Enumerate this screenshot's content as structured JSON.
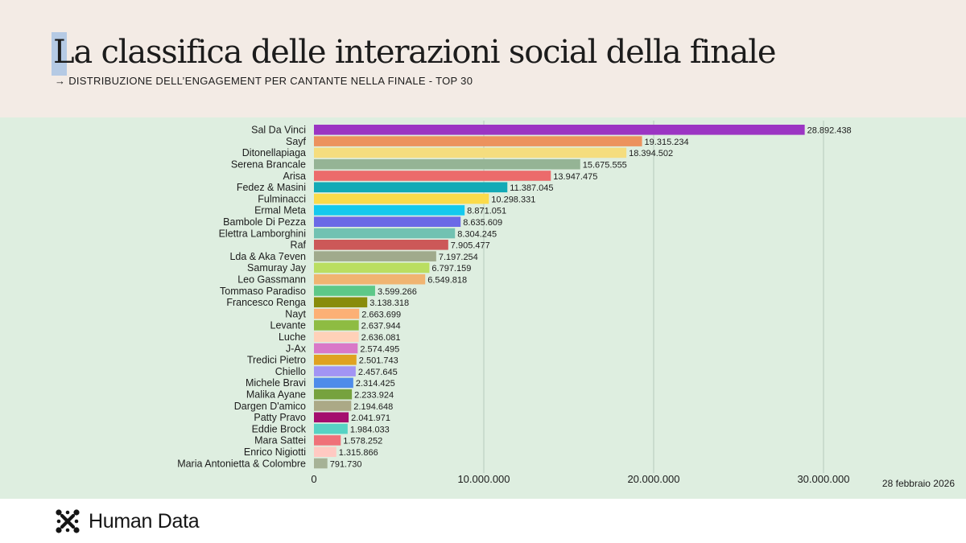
{
  "header": {
    "title": "La classifica delle interazioni social della finale",
    "subtitle": "→ DISTRIBUZIONE DELL’ENGAGEMENT PER CANTANTE NELLA FINALE - TOP 30"
  },
  "date_note": "28 febbraio 2026",
  "brand": {
    "name": "Human Data",
    "logo_icon": "human-data-logo-icon"
  },
  "colors": {
    "header_bg": "#f3ebe5",
    "chart_bg": "#deeee0",
    "grid": "#b7c9bb"
  },
  "chart_data": {
    "type": "bar",
    "orientation": "horizontal",
    "title": "La classifica delle interazioni social della finale",
    "subtitle": "→ DISTRIBUZIONE DELL’ENGAGEMENT PER CANTANTE NELLA FINALE - TOP 30",
    "xlabel": "",
    "ylabel": "",
    "xlim": [
      0,
      30000000
    ],
    "x_ticks": [
      0,
      10000000,
      20000000,
      30000000
    ],
    "x_tick_labels": [
      "0",
      "10.000.000",
      "20.000.000",
      "30.000.000"
    ],
    "grid": true,
    "categories": [
      "Sal Da Vinci",
      "Sayf",
      "Ditonellapiaga",
      "Serena Brancale",
      "Arisa",
      "Fedez & Masini",
      "Fulminacci",
      "Ermal Meta",
      "Bambole Di Pezza",
      "Elettra Lamborghini",
      "Raf",
      "Lda & Aka 7even",
      "Samuray Jay",
      "Leo Gassmann",
      "Tommaso Paradiso",
      "Francesco Renga",
      "Nayt",
      "Levante",
      "Luche",
      "J-Ax",
      "Tredici Pietro",
      "Chiello",
      "Michele Bravi",
      "Malika Ayane",
      "Dargen D'amico",
      "Patty Pravo",
      "Eddie Brock",
      "Mara Sattei",
      "Enrico Nigiotti",
      "Maria Antonietta & Colombre"
    ],
    "values": [
      28892438,
      19315234,
      18394502,
      15675555,
      13947475,
      11387045,
      10298331,
      8871051,
      8635609,
      8304245,
      7905477,
      7197254,
      6797159,
      6549818,
      3599266,
      3138318,
      2663699,
      2637944,
      2636081,
      2574495,
      2501743,
      2457645,
      2314425,
      2233924,
      2194648,
      2041971,
      1984033,
      1578252,
      1315866,
      791730
    ],
    "value_labels": [
      "28.892.438",
      "19.315.234",
      "18.394.502",
      "15.675.555",
      "13.947.475",
      "11.387.045",
      "10.298.331",
      "8.871.051",
      "8.635.609",
      "8.304.245",
      "7.905.477",
      "7.197.254",
      "6.797.159",
      "6.549.818",
      "3.599.266",
      "3.138.318",
      "2.663.699",
      "2.637.944",
      "2.636.081",
      "2.574.495",
      "2.501.743",
      "2.457.645",
      "2.314.425",
      "2.233.924",
      "2.194.648",
      "2.041.971",
      "1.984.033",
      "1.578.252",
      "1.315.866",
      "791.730"
    ],
    "bar_colors": [
      "#9b35c3",
      "#ec925e",
      "#f5dd7e",
      "#95b495",
      "#ec6b6b",
      "#13aab6",
      "#fbdb4b",
      "#14c9ee",
      "#6b69e6",
      "#72c2b2",
      "#cc5858",
      "#a0aa8c",
      "#bade61",
      "#f0b471",
      "#5dc888",
      "#888c0b",
      "#fcb075",
      "#8ebc42",
      "#ffd1b8",
      "#d978c8",
      "#dfa220",
      "#a294f4",
      "#4f8cea",
      "#76a23e",
      "#aba986",
      "#a40d6e",
      "#56d3c4",
      "#ef7179",
      "#ffc9c2",
      "#a6b296"
    ]
  }
}
